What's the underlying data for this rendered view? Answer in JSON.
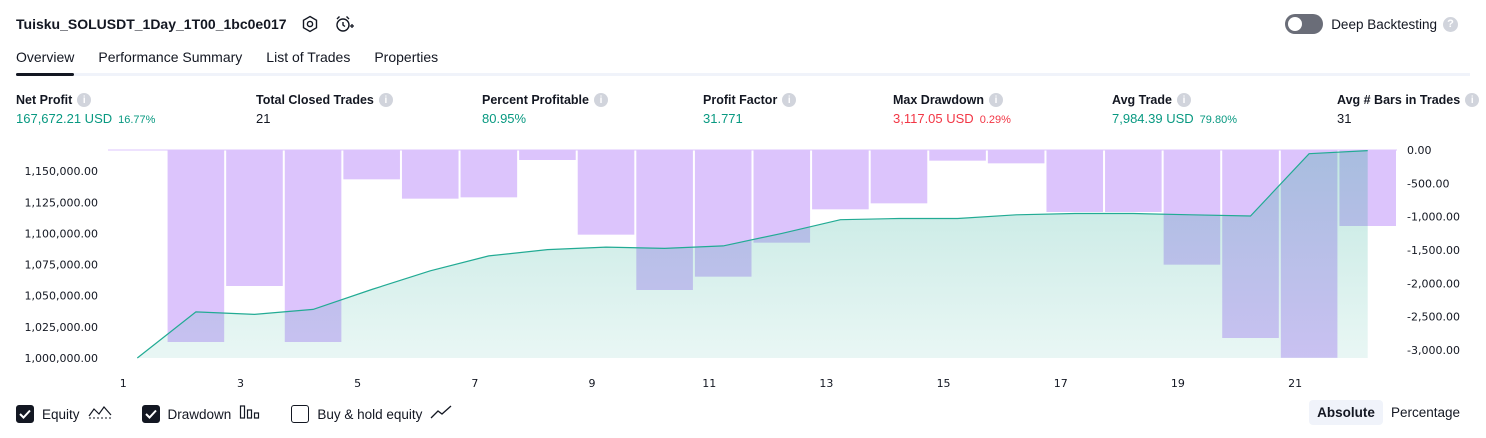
{
  "header": {
    "title": "Tuisku_SOLUSDT_1Day_1T00_1bc0e017",
    "settings_icon": "gear-icon",
    "alert_icon": "alarm-clock-plus-icon",
    "deep_backtesting_label": "Deep Backtesting",
    "deep_backtesting_on": false,
    "help_icon_text": "?"
  },
  "tabs": [
    {
      "label": "Overview",
      "active": true
    },
    {
      "label": "Performance Summary",
      "active": false
    },
    {
      "label": "List of Trades",
      "active": false
    },
    {
      "label": "Properties",
      "active": false
    }
  ],
  "metrics": [
    {
      "label": "Net Profit",
      "value": "167,672.21 USD",
      "pct": "16.77%",
      "color": "#089981"
    },
    {
      "label": "Total Closed Trades",
      "value": "21",
      "pct": "",
      "color": "#131722"
    },
    {
      "label": "Percent Profitable",
      "value": "80.95%",
      "pct": "",
      "color": "#089981"
    },
    {
      "label": "Profit Factor",
      "value": "31.771",
      "pct": "",
      "color": "#089981"
    },
    {
      "label": "Max Drawdown",
      "value": "3,117.05 USD",
      "pct": "0.29%",
      "color": "#f23645"
    },
    {
      "label": "Avg Trade",
      "value": "7,984.39 USD",
      "pct": "79.80%",
      "color": "#089981"
    },
    {
      "label": "Avg # Bars in Trades",
      "value": "31",
      "pct": "",
      "color": "#131722"
    }
  ],
  "info_icon_text": "i",
  "chart_data": {
    "type": "line+bar",
    "x": [
      1,
      2,
      3,
      4,
      5,
      6,
      7,
      8,
      9,
      10,
      11,
      12,
      13,
      14,
      15,
      16,
      17,
      18,
      19,
      20,
      21,
      22
    ],
    "x_tick_labels": [
      "1",
      "3",
      "5",
      "7",
      "9",
      "11",
      "13",
      "15",
      "17",
      "19",
      "21"
    ],
    "series": [
      {
        "name": "Equity",
        "axis": "left",
        "color": "#22ab94",
        "values": [
          1000000,
          1037000,
          1035000,
          1039000,
          1055000,
          1070000,
          1082000,
          1087000,
          1089000,
          1088000,
          1090000,
          1100000,
          1111000,
          1112000,
          1112000,
          1115000,
          1116000,
          1116000,
          1115000,
          1114000,
          1164000,
          1166500
        ]
      },
      {
        "name": "Drawdown",
        "axis": "right",
        "color": "#dcc4fc",
        "values": [
          0,
          -2880,
          -2040,
          -2880,
          -440,
          -730,
          -710,
          -150,
          -1270,
          -2100,
          -1900,
          -1390,
          -890,
          -800,
          -160,
          -200,
          -930,
          -930,
          -1720,
          -2820,
          -3117,
          -1140
        ]
      }
    ],
    "y_left_ticks": [
      "1,000,000.00",
      "1,025,000.00",
      "1,050,000.00",
      "1,075,000.00",
      "1,100,000.00",
      "1,125,000.00",
      "1,150,000.00"
    ],
    "y_left_range": [
      1000000,
      1167000
    ],
    "y_right_ticks": [
      "0.00",
      "-500.00",
      "-1,000.00",
      "-1,500.00",
      "-2,000.00",
      "-2,500.00",
      "-3,000.00"
    ],
    "y_right_range": [
      -3120,
      0
    ],
    "grid": false
  },
  "legend": [
    {
      "label": "Equity",
      "checked": true,
      "icon": "equity-line-icon"
    },
    {
      "label": "Drawdown",
      "checked": true,
      "icon": "drawdown-bars-icon"
    },
    {
      "label": "Buy & hold equity",
      "checked": false,
      "icon": "buy-hold-line-icon"
    }
  ],
  "mode": [
    {
      "label": "Absolute",
      "active": true
    },
    {
      "label": "Percentage",
      "active": false
    }
  ]
}
